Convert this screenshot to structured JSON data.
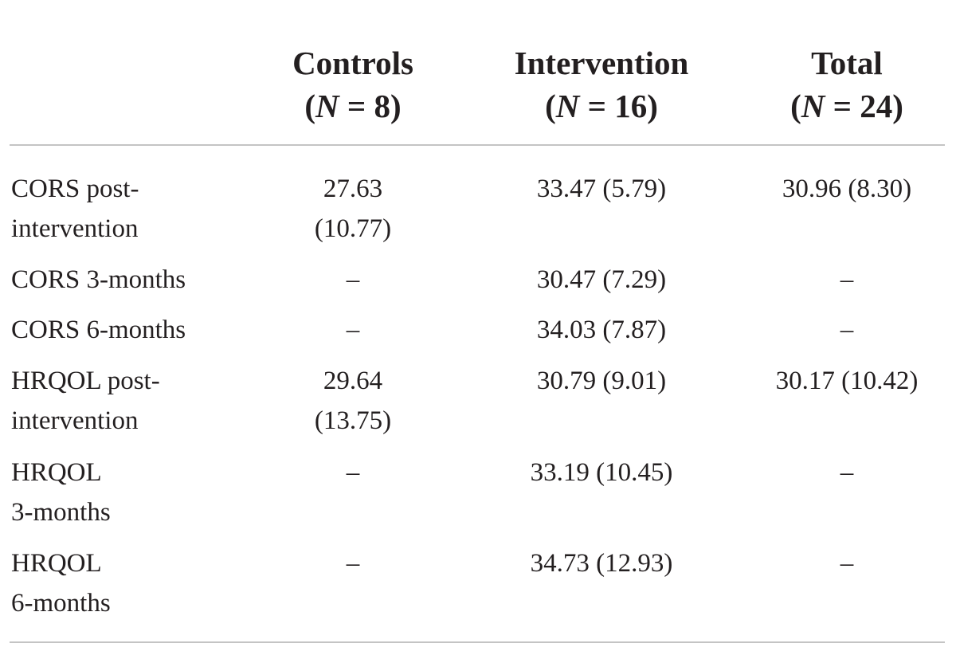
{
  "table": {
    "headers": [
      {
        "name": "Controls",
        "n_prefix": "(",
        "n_var": "N",
        "n_suffix": " = 8)"
      },
      {
        "name": "Intervention",
        "n_prefix": "(",
        "n_var": "N",
        "n_suffix": " = 16)"
      },
      {
        "name": "Total",
        "n_prefix": "(",
        "n_var": "N",
        "n_suffix": " = 24)"
      }
    ],
    "rows": [
      {
        "label_lines": [
          "CORS post-",
          "intervention"
        ],
        "controls_lines": [
          "27.63",
          "(10.77)"
        ],
        "intervention_lines": [
          "33.47 (5.79)"
        ],
        "total_lines": [
          "30.96 (8.30)"
        ]
      },
      {
        "label_lines": [
          "CORS 3-months"
        ],
        "controls_lines": [
          "–"
        ],
        "intervention_lines": [
          "30.47 (7.29)"
        ],
        "total_lines": [
          "–"
        ]
      },
      {
        "label_lines": [
          "CORS 6-months"
        ],
        "controls_lines": [
          "–"
        ],
        "intervention_lines": [
          "34.03 (7.87)"
        ],
        "total_lines": [
          "–"
        ]
      },
      {
        "label_lines": [
          "HRQOL post-",
          "intervention"
        ],
        "controls_lines": [
          "29.64",
          "(13.75)"
        ],
        "intervention_lines": [
          "30.79 (9.01)"
        ],
        "total_lines": [
          "30.17 (10.42)"
        ]
      },
      {
        "label_lines": [
          "HRQOL",
          "3-months"
        ],
        "controls_lines": [
          "–"
        ],
        "intervention_lines": [
          "33.19 (10.45)"
        ],
        "total_lines": [
          "–"
        ]
      },
      {
        "label_lines": [
          "HRQOL",
          "6-months"
        ],
        "controls_lines": [
          "–"
        ],
        "intervention_lines": [
          "34.73 (12.93)"
        ],
        "total_lines": [
          "–"
        ]
      }
    ]
  }
}
